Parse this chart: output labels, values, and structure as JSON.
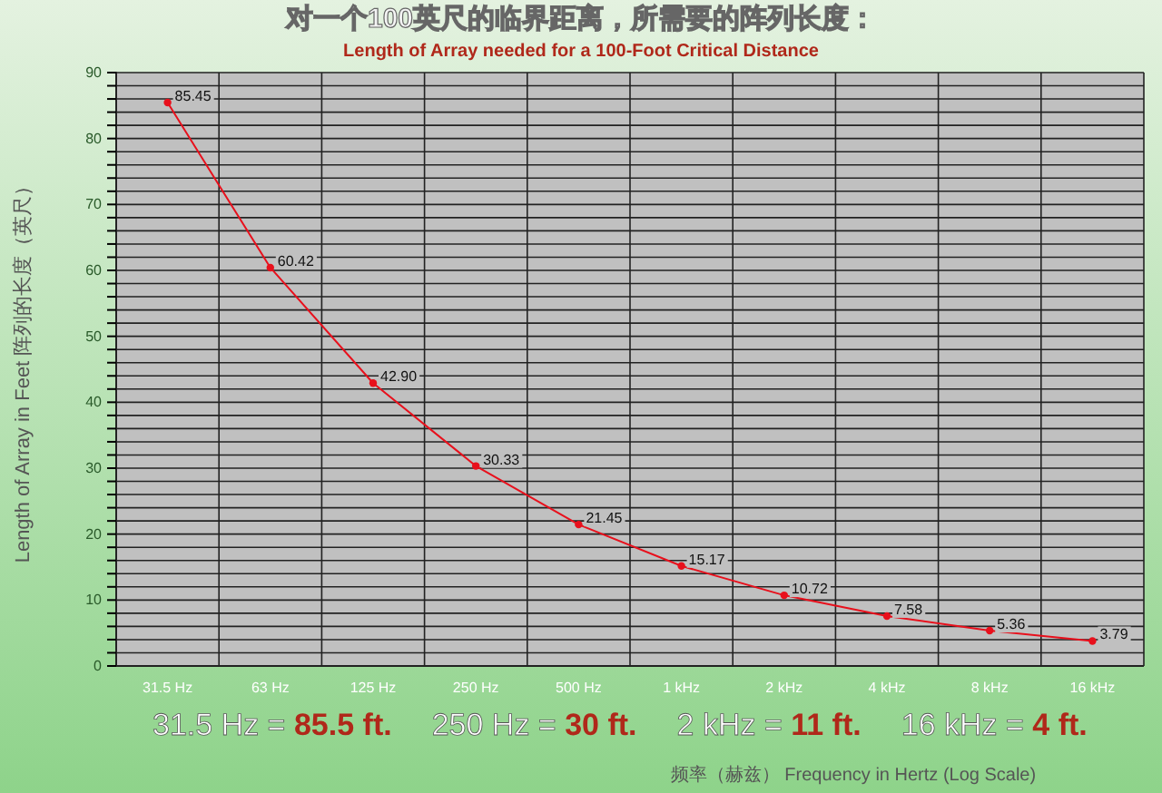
{
  "chart_data": {
    "type": "line",
    "title": "对一个100英尺的临界距离，所需要的阵列长度：",
    "subtitle": "Length of Array needed for a 100-Foot Critical Distance",
    "xlabel": "频率（赫兹）  Frequency in Hertz (Log Scale)",
    "ylabel": "Length of Array in Feet  阵列的长度（英尺）",
    "categories": [
      "31.5 Hz",
      "63 Hz",
      "125 Hz",
      "250 Hz",
      "500 Hz",
      "1 kHz",
      "2 kHz",
      "4 kHz",
      "8 kHz",
      "16 kHz"
    ],
    "series": [
      {
        "color": "#e8101c",
        "values": [
          85.45,
          60.42,
          42.9,
          30.33,
          21.45,
          15.17,
          10.72,
          7.58,
          5.36,
          3.79
        ],
        "value_labels": [
          "85.45",
          "60.42",
          "42.90",
          "30.33",
          "21.45",
          "15.17",
          "10.72",
          "7.58",
          "5.36",
          "3.79"
        ]
      }
    ],
    "ylim": [
      0,
      90
    ],
    "yticks": [
      0,
      {
        "value": 2,
        "label": null
      },
      {
        "value": 4,
        "label": null
      },
      {
        "value": 6,
        "label": null
      },
      {
        "value": 8,
        "label": null
      },
      10,
      {
        "value": 12,
        "label": null
      },
      {
        "value": 14,
        "label": null
      },
      {
        "value": 16,
        "label": null
      },
      {
        "value": 18,
        "label": null
      },
      20,
      {
        "value": 22,
        "label": null
      },
      {
        "value": 24,
        "label": null
      },
      {
        "value": 26,
        "label": null
      },
      {
        "value": 28,
        "label": null
      },
      30,
      {
        "value": 32,
        "label": null
      },
      {
        "value": 34,
        "label": null
      },
      {
        "value": 36,
        "label": null
      },
      {
        "value": 38,
        "label": null
      },
      40,
      {
        "value": 42,
        "label": null
      },
      {
        "value": 44,
        "label": null
      },
      {
        "value": 46,
        "label": null
      },
      {
        "value": 48,
        "label": null
      },
      50,
      {
        "value": 52,
        "label": null
      },
      {
        "value": 54,
        "label": null
      },
      {
        "value": 56,
        "label": null
      },
      {
        "value": 58,
        "label": null
      },
      60,
      {
        "value": 62,
        "label": null
      },
      {
        "value": 64,
        "label": null
      },
      {
        "value": 66,
        "label": null
      },
      {
        "value": 68,
        "label": null
      },
      70,
      {
        "value": 72,
        "label": null
      },
      {
        "value": 74,
        "label": null
      },
      {
        "value": 76,
        "label": null
      },
      {
        "value": 78,
        "label": null
      },
      80,
      {
        "value": 82,
        "label": null
      },
      {
        "value": 84,
        "label": null
      },
      {
        "value": 86,
        "label": null
      },
      {
        "value": 88,
        "label": null
      },
      90
    ],
    "grid": true,
    "marker": "circle",
    "line_style": "solid",
    "annotations": [
      "31.5 Hz = 85.5 ft.",
      "250 Hz = 30 ft.",
      "2 kHz = 11 ft.",
      "16 kHz = 4 ft."
    ]
  }
}
